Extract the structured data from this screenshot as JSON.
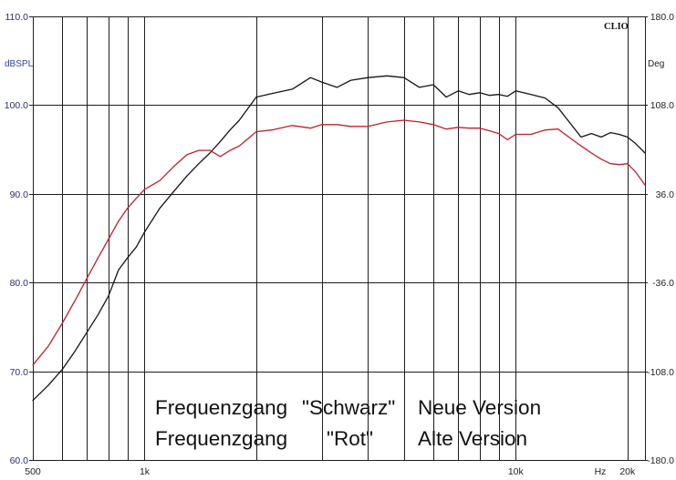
{
  "chart_data": {
    "type": "line",
    "x_scale": "log",
    "xlim": [
      500,
      22300
    ],
    "ylim": [
      60,
      110
    ],
    "y2lim": [
      -180,
      180
    ],
    "grid": true,
    "legend_position": "bottom-center",
    "xlabel": "Hz",
    "ylabel": "dBSPL",
    "y2label": "Deg",
    "brand": "CLIO",
    "x_ticks": [
      {
        "value": 500,
        "label": "500"
      },
      {
        "value": 1000,
        "label": "1k"
      },
      {
        "value": 10000,
        "label": "10k"
      },
      {
        "value": 20000,
        "label": "20k"
      }
    ],
    "y_ticks": [
      {
        "value": 110,
        "label": "110.0"
      },
      {
        "value": 100,
        "label": "100.0"
      },
      {
        "value": 90,
        "label": "90.0"
      },
      {
        "value": 80,
        "label": "80.0"
      },
      {
        "value": 70,
        "label": "70.0"
      },
      {
        "value": 60,
        "label": "60.0"
      }
    ],
    "y2_ticks": [
      {
        "value": 180,
        "label": "180.0"
      },
      {
        "value": 108,
        "label": "108.0"
      },
      {
        "value": 36,
        "label": "36.0"
      },
      {
        "value": -36,
        "label": "-36.0"
      },
      {
        "value": -108,
        "label": "-108.0"
      },
      {
        "value": -180,
        "label": "-180.0"
      }
    ],
    "x": [
      500,
      550,
      600,
      650,
      700,
      750,
      800,
      850,
      900,
      950,
      1000,
      1100,
      1200,
      1300,
      1400,
      1500,
      1600,
      1700,
      1800,
      2000,
      2200,
      2500,
      2800,
      3000,
      3300,
      3600,
      4000,
      4500,
      5000,
      5500,
      6000,
      6500,
      7000,
      7500,
      8000,
      8500,
      9000,
      9500,
      10000,
      11000,
      12000,
      13000,
      14000,
      15000,
      16000,
      17000,
      18000,
      19000,
      20000,
      21000,
      22300
    ],
    "series": [
      {
        "prefix": "Frequenzgang",
        "key": "\"Schwarz\"",
        "name": "Neue Version",
        "color": "#141414",
        "key_color": "#111111",
        "values": [
          66.7,
          68.4,
          70.2,
          72.3,
          74.4,
          76.4,
          78.5,
          81.4,
          82.8,
          84.0,
          85.7,
          88.4,
          90.3,
          92.0,
          93.4,
          94.6,
          95.9,
          97.2,
          98.3,
          100.9,
          101.3,
          101.8,
          103.1,
          102.6,
          102.0,
          102.8,
          103.1,
          103.3,
          103.1,
          102.0,
          102.3,
          100.9,
          101.6,
          101.2,
          101.4,
          101.1,
          101.2,
          101.0,
          101.6,
          101.2,
          100.8,
          99.7,
          98.0,
          96.4,
          96.8,
          96.4,
          96.9,
          96.7,
          96.4,
          95.7,
          94.6
        ]
      },
      {
        "prefix": "Frequenzgang",
        "key": "\"Rot\"",
        "name": "Alte Version",
        "color": "#c0202a",
        "key_color": "#d11f1f",
        "values": [
          70.7,
          72.8,
          75.4,
          78.0,
          80.5,
          82.8,
          84.9,
          86.9,
          88.4,
          89.5,
          90.5,
          91.5,
          93.1,
          94.4,
          94.9,
          94.9,
          94.2,
          94.9,
          95.4,
          97.0,
          97.2,
          97.7,
          97.4,
          97.8,
          97.8,
          97.6,
          97.6,
          98.1,
          98.3,
          98.1,
          97.8,
          97.3,
          97.5,
          97.4,
          97.4,
          97.1,
          96.8,
          96.1,
          96.7,
          96.7,
          97.2,
          97.3,
          96.3,
          95.4,
          94.6,
          93.9,
          93.4,
          93.3,
          93.4,
          92.5,
          91.0
        ]
      }
    ]
  }
}
